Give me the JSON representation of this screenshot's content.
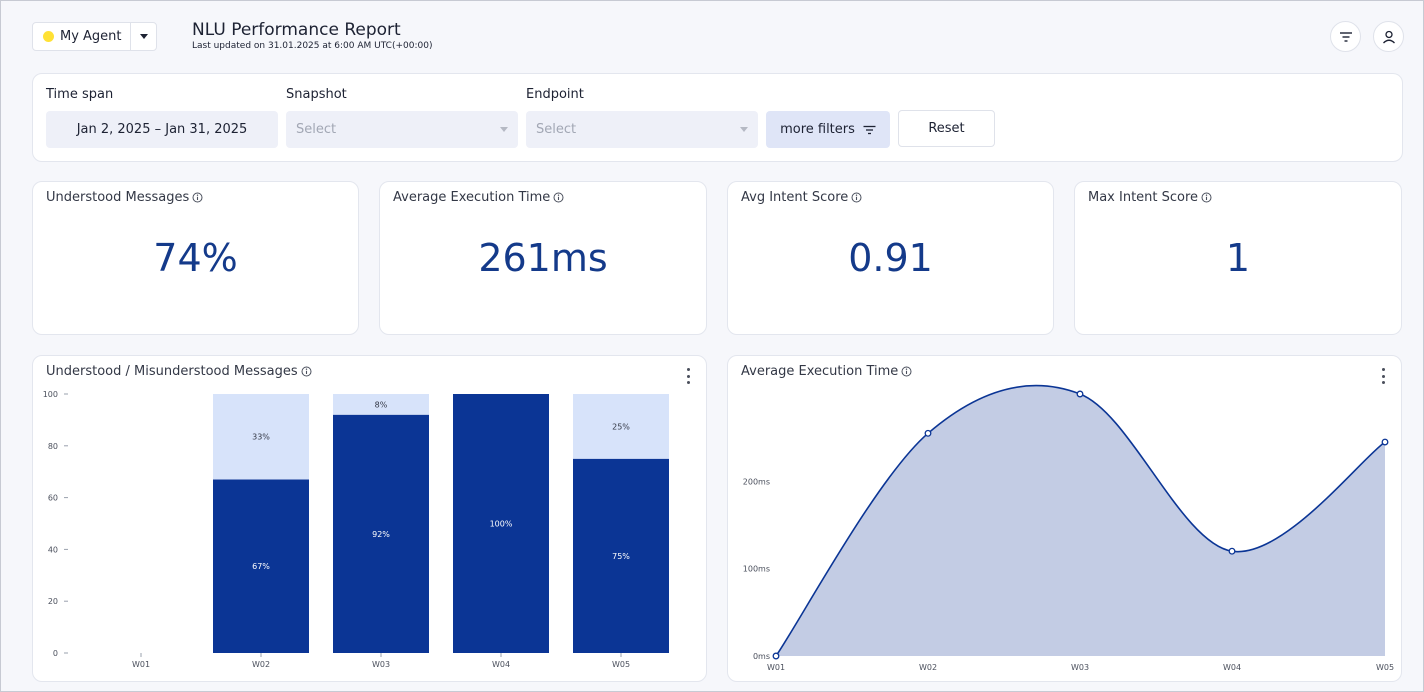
{
  "header": {
    "agent_name": "My Agent",
    "title": "NLU Performance Report",
    "subtitle": "Last updated on 31.01.2025 at 6:00 AM UTC(+00:00)"
  },
  "filters": {
    "time_span_label": "Time span",
    "time_span_value": "Jan 2, 2025 – Jan 31, 2025",
    "snapshot_label": "Snapshot",
    "snapshot_placeholder": "Select",
    "endpoint_label": "Endpoint",
    "endpoint_placeholder": "Select",
    "more_filters_label": "more filters",
    "reset_label": "Reset"
  },
  "kpis": [
    {
      "title": "Understood Messages",
      "value": "74%"
    },
    {
      "title": "Average Execution Time",
      "value": "261ms"
    },
    {
      "title": "Avg Intent Score",
      "value": "0.91"
    },
    {
      "title": "Max Intent Score",
      "value": "1"
    }
  ],
  "colors": {
    "accent": "#0b3595",
    "light_fill": "#d7e3fa",
    "area_fill": "#c3cce4",
    "kpi_text": "#143a8a",
    "agent_dot": "#ffe135"
  },
  "chart_data": [
    {
      "type": "bar",
      "title": "Understood / Misunderstood Messages",
      "categories": [
        "W01",
        "W02",
        "W03",
        "W04",
        "W05"
      ],
      "series": [
        {
          "name": "Understood",
          "values": [
            0,
            67,
            92,
            100,
            75
          ],
          "labels": [
            "",
            "67%",
            "92%",
            "100%",
            "75%"
          ]
        },
        {
          "name": "Misunderstood",
          "values": [
            0,
            33,
            8,
            0,
            25
          ],
          "labels": [
            "",
            "33%",
            "8%",
            "",
            "25%"
          ]
        }
      ],
      "yticks": [
        "0",
        "20",
        "40",
        "60",
        "80",
        "100"
      ],
      "ylim": [
        0,
        100
      ]
    },
    {
      "type": "area",
      "title": "Average Execution Time",
      "x": [
        "W01",
        "W02",
        "W03",
        "W04",
        "W05"
      ],
      "values": [
        0,
        255,
        300,
        120,
        245
      ],
      "yticks": [
        "0ms",
        "100ms",
        "200ms"
      ],
      "ylim": [
        0,
        300
      ]
    }
  ]
}
